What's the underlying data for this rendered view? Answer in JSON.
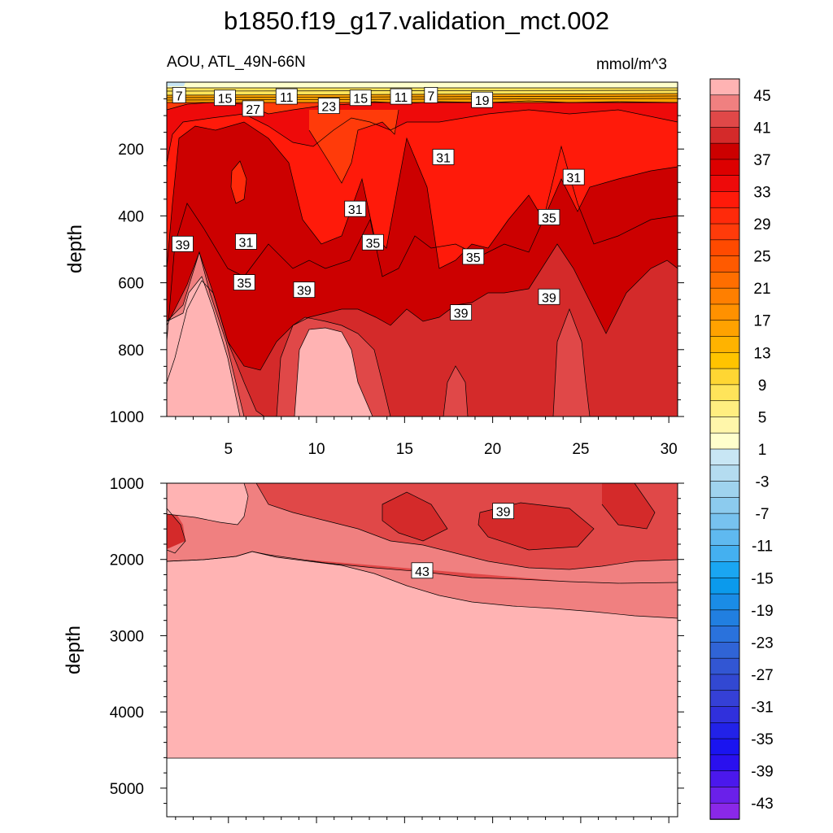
{
  "chart_data": [
    {
      "type": "contour",
      "title": "b1850.f19_g17.validation_mct.002",
      "subtitle_left": "AOU, ATL_49N-66N",
      "subtitle_right": "mmol/m^3",
      "xlabel": "",
      "ylabel": "depth",
      "xlim": [
        1.5,
        30.5
      ],
      "ylim": [
        1000,
        0
      ],
      "x_ticks": [
        5,
        10,
        15,
        20,
        25,
        30
      ],
      "y_ticks": [
        200,
        400,
        600,
        800,
        1000
      ],
      "contour_labels": [
        {
          "value": "7",
          "x": 2.2,
          "y": 40
        },
        {
          "value": "15",
          "x": 4.8,
          "y": 48
        },
        {
          "value": "27",
          "x": 6.4,
          "y": 80
        },
        {
          "value": "11",
          "x": 8.3,
          "y": 44
        },
        {
          "value": "23",
          "x": 10.7,
          "y": 72
        },
        {
          "value": "15",
          "x": 12.5,
          "y": 48
        },
        {
          "value": "11",
          "x": 14.8,
          "y": 44
        },
        {
          "value": "7",
          "x": 16.5,
          "y": 40
        },
        {
          "value": "19",
          "x": 19.4,
          "y": 54
        },
        {
          "value": "31",
          "x": 17.2,
          "y": 225
        },
        {
          "value": "31",
          "x": 24.6,
          "y": 285
        },
        {
          "value": "31",
          "x": 12.2,
          "y": 380
        },
        {
          "value": "35",
          "x": 23.2,
          "y": 405
        },
        {
          "value": "39",
          "x": 2.4,
          "y": 485
        },
        {
          "value": "31",
          "x": 6.0,
          "y": 478
        },
        {
          "value": "35",
          "x": 13.2,
          "y": 480
        },
        {
          "value": "35",
          "x": 18.9,
          "y": 523
        },
        {
          "value": "35",
          "x": 5.9,
          "y": 600
        },
        {
          "value": "39",
          "x": 9.3,
          "y": 622
        },
        {
          "value": "39",
          "x": 23.2,
          "y": 643
        },
        {
          "value": "39",
          "x": 18.2,
          "y": 690
        }
      ]
    },
    {
      "type": "contour",
      "title": "",
      "xlabel": "",
      "ylabel": "depth",
      "xlim": [
        1.5,
        30.5
      ],
      "ylim": [
        5375,
        1000
      ],
      "y_ticks": [
        1000,
        2000,
        3000,
        4000,
        5000
      ],
      "sea_floor_depth": 4625,
      "contour_labels": [
        {
          "value": "39",
          "x": 20.6,
          "y": 1370
        },
        {
          "value": "43",
          "x": 16.0,
          "y": 2150
        }
      ]
    },
    {
      "type": "colorbar",
      "levels": [
        -45,
        -43,
        -41,
        -39,
        -37,
        -35,
        -33,
        -31,
        -29,
        -27,
        -25,
        -23,
        -21,
        -19,
        -17,
        -15,
        -13,
        -11,
        -9,
        -7,
        -5,
        -3,
        -1,
        1,
        3,
        5,
        7,
        9,
        11,
        13,
        15,
        17,
        19,
        21,
        23,
        25,
        27,
        29,
        31,
        33,
        35,
        37,
        39,
        41,
        43,
        45
      ],
      "tick_labels": [
        "45",
        "41",
        "37",
        "33",
        "29",
        "25",
        "21",
        "17",
        "13",
        "9",
        "5",
        "1",
        "-3",
        "-7",
        "-11",
        "-15",
        "-19",
        "-23",
        "-27",
        "-31",
        "-35",
        "-39",
        "-43"
      ]
    }
  ],
  "colors": {
    "c45": "#ffb3b3",
    "c43": "#f08080",
    "c41": "#e04848",
    "c39": "#d42a2a",
    "c37": "#cc0000",
    "c35": "#dd0000",
    "c33": "#ee0a0a",
    "c31": "#ff1a0a",
    "c29": "#ff2a0a",
    "c27": "#ff3b0a",
    "c25": "#ff4a00",
    "c23": "#ff5a00",
    "c21": "#ff6e00",
    "c19": "#ff7f00",
    "c17": "#ff9100",
    "c15": "#ffa200",
    "c13": "#ffb300",
    "c11": "#ffc400",
    "c9": "#ffd633",
    "c7": "#ffe45a",
    "c5": "#ffee80",
    "c3": "#fff6aa",
    "c1": "#ffffcc",
    "cm1": "#c8e6f4",
    "cm3": "#b4dcf0",
    "cm5": "#9fd3ee",
    "cm7": "#8ccbee",
    "cm9": "#77c2ef",
    "cm11": "#5fb9f0",
    "cm13": "#44b0f0",
    "cm15": "#1aa6f2",
    "cm17": "#0b9aec",
    "cm19": "#1a8ce6",
    "cm21": "#217fe0",
    "cm23": "#2a72dc",
    "cm25": "#3064d6",
    "cm27": "#3256d3",
    "cm29": "#3248d2",
    "cm31": "#3540d6",
    "cm33": "#3030dc",
    "cm35": "#2222e8",
    "cm37": "#1a14f0",
    "cm39": "#2a10ee",
    "cm41": "#4b18ec",
    "cm43": "#6a20ea",
    "cm45": "#8a28e8"
  }
}
